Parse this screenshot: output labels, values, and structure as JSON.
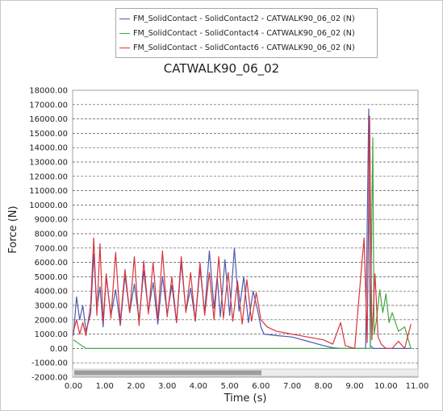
{
  "chart_data": {
    "type": "line",
    "title": "CATWALK90_06_02",
    "xlabel": "Time (s)",
    "ylabel": "Force (N)",
    "xlim": [
      0,
      11
    ],
    "ylim": [
      -2000,
      18000
    ],
    "xticks": [
      0,
      1,
      2,
      3,
      4,
      5,
      6,
      7,
      8,
      9,
      10,
      11
    ],
    "yticks": [
      -2000,
      -1000,
      0,
      1000,
      2000,
      3000,
      4000,
      5000,
      6000,
      7000,
      8000,
      9000,
      10000,
      11000,
      12000,
      13000,
      14000,
      15000,
      16000,
      17000,
      18000
    ],
    "xtick_labels": [
      "0.00",
      "1.00",
      "2.00",
      "3.00",
      "4.00",
      "5.00",
      "6.00",
      "7.00",
      "8.00",
      "9.00",
      "10.00",
      "11.00"
    ],
    "ytick_labels": [
      "-2000.00",
      "-1000.00",
      "0.00",
      "1000.00",
      "2000.00",
      "3000.00",
      "4000.00",
      "5000.00",
      "6000.00",
      "7000.00",
      "8000.00",
      "9000.00",
      "10000.00",
      "11000.00",
      "12000.00",
      "13000.00",
      "14000.00",
      "15000.00",
      "16000.00",
      "17000.00",
      "18000.00"
    ],
    "grid": "horizontal-dashed",
    "legend_position": "top",
    "series": [
      {
        "name": "FM_SolidContact - SolidContact2 - CATWALK90_06_02 (N)",
        "color": "#4b5bb0",
        "x": [
          0.0,
          0.1,
          0.2,
          0.3,
          0.4,
          0.55,
          0.65,
          0.75,
          0.85,
          0.95,
          1.05,
          1.2,
          1.35,
          1.5,
          1.65,
          1.8,
          1.95,
          2.1,
          2.25,
          2.4,
          2.55,
          2.7,
          2.85,
          3.0,
          3.15,
          3.3,
          3.45,
          3.6,
          3.75,
          3.9,
          4.05,
          4.2,
          4.35,
          4.5,
          4.6,
          4.7,
          4.85,
          5.0,
          5.15,
          5.3,
          5.45,
          5.6,
          5.75,
          5.9,
          6.0,
          6.1,
          6.5,
          7.0,
          7.5,
          8.0,
          8.3,
          8.55,
          8.7,
          9.0,
          9.35,
          9.45,
          9.5,
          9.6,
          9.8,
          10.2,
          10.5,
          10.8
        ],
        "y": [
          900,
          3600,
          2000,
          3000,
          1200,
          2400,
          6600,
          2800,
          4300,
          1500,
          5000,
          2300,
          4100,
          1600,
          5100,
          2500,
          4500,
          2000,
          5400,
          2600,
          4600,
          1700,
          5000,
          2400,
          4400,
          1800,
          6000,
          2600,
          4200,
          1900,
          5600,
          2500,
          6800,
          2800,
          5000,
          2200,
          6200,
          2300,
          7000,
          2600,
          5000,
          1800,
          4000,
          2600,
          1500,
          1000,
          900,
          800,
          500,
          200,
          50,
          0,
          0,
          0,
          0,
          16700,
          200,
          0,
          0,
          0,
          0,
          0
        ]
      },
      {
        "name": "FM_SolidContact - SolidContact4 - CATWALK90_06_02 (N)",
        "color": "#45a645",
        "x": [
          0.0,
          0.2,
          0.4,
          1.0,
          3.0,
          6.0,
          8.0,
          9.0,
          9.4,
          9.5,
          9.58,
          9.62,
          9.7,
          9.8,
          9.9,
          10.0,
          10.1,
          10.2,
          10.4,
          10.6,
          10.8
        ],
        "y": [
          600,
          300,
          0,
          0,
          0,
          0,
          0,
          0,
          0,
          0,
          14700,
          1000,
          2000,
          4100,
          2500,
          3800,
          1800,
          2500,
          1200,
          1500,
          0
        ]
      },
      {
        "name": "FM_SolidContact - SolidContact6 - CATWALK90_06_02 (N)",
        "color": "#d8353b",
        "x": [
          0.0,
          0.1,
          0.2,
          0.3,
          0.4,
          0.55,
          0.65,
          0.75,
          0.85,
          0.95,
          1.05,
          1.2,
          1.35,
          1.5,
          1.65,
          1.8,
          1.95,
          2.1,
          2.25,
          2.4,
          2.55,
          2.7,
          2.85,
          3.0,
          3.15,
          3.3,
          3.45,
          3.6,
          3.75,
          3.9,
          4.05,
          4.2,
          4.35,
          4.5,
          4.65,
          4.8,
          4.95,
          5.1,
          5.25,
          5.4,
          5.55,
          5.7,
          5.85,
          6.0,
          6.2,
          6.5,
          7.0,
          7.5,
          8.0,
          8.3,
          8.55,
          8.7,
          9.0,
          9.3,
          9.4,
          9.48,
          9.55,
          9.65,
          9.75,
          9.85,
          10.0,
          10.2,
          10.4,
          10.6,
          10.8
        ],
        "y": [
          1200,
          2000,
          1000,
          1800,
          900,
          3000,
          7700,
          2300,
          7300,
          1800,
          5200,
          2100,
          6700,
          1800,
          5500,
          2500,
          6400,
          1600,
          6100,
          2400,
          6000,
          2000,
          6800,
          2200,
          5000,
          1800,
          6400,
          2500,
          5300,
          1900,
          6000,
          2300,
          5300,
          2000,
          6400,
          2100,
          5300,
          1900,
          4700,
          1700,
          4800,
          1900,
          3900,
          2000,
          1500,
          1200,
          1000,
          800,
          600,
          300,
          1800,
          200,
          0,
          7700,
          400,
          16200,
          600,
          5200,
          800,
          300,
          0,
          0,
          500,
          0,
          1700
        ]
      }
    ]
  }
}
